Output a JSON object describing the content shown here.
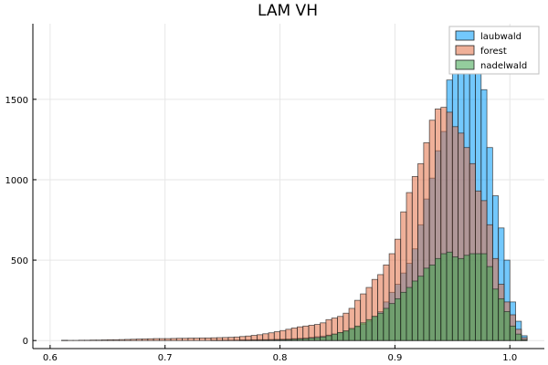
{
  "chart_data": {
    "type": "bar",
    "title": "LAM VH",
    "xlabel": "",
    "ylabel": "",
    "xlim": [
      0.585,
      1.03
    ],
    "ylim": [
      -50,
      1970
    ],
    "x_ticks": [
      0.6,
      0.7,
      0.8,
      0.9,
      1.0
    ],
    "x_tick_labels": [
      "0.6",
      "0.7",
      "0.8",
      "0.9",
      "1.0"
    ],
    "y_ticks": [
      0,
      500,
      1000,
      1500
    ],
    "y_tick_labels": [
      "0",
      "500",
      "1000",
      "1500"
    ],
    "grid": true,
    "legend_position": "top-right",
    "bin_width": 0.005,
    "bin_start": 0.61,
    "series": [
      {
        "name": "laubwald",
        "color": "#009af9",
        "values": [
          1,
          0,
          0,
          0,
          0,
          0,
          0,
          0,
          0,
          0,
          0,
          0,
          0,
          0,
          0,
          0,
          0,
          0,
          0,
          0,
          0,
          0,
          0,
          0,
          0,
          0,
          1,
          1,
          2,
          2,
          3,
          4,
          4,
          5,
          6,
          6,
          7,
          8,
          9,
          10,
          12,
          14,
          16,
          20,
          24,
          28,
          34,
          40,
          48,
          58,
          70,
          84,
          100,
          120,
          150,
          180,
          240,
          300,
          350,
          420,
          480,
          570,
          720,
          880,
          1010,
          1180,
          1300,
          1620,
          1760,
          1850,
          1820,
          1910,
          1730,
          1560,
          1200,
          900,
          700,
          500,
          240,
          120,
          30,
          0
        ]
      },
      {
        "name": "forest",
        "color": "#e26f46",
        "values": [
          1,
          1,
          1,
          2,
          2,
          3,
          3,
          4,
          5,
          5,
          6,
          7,
          8,
          9,
          10,
          11,
          12,
          12,
          12,
          13,
          14,
          14,
          15,
          15,
          16,
          16,
          17,
          18,
          19,
          20,
          22,
          25,
          28,
          32,
          36,
          42,
          48,
          55,
          62,
          70,
          78,
          85,
          90,
          95,
          100,
          110,
          130,
          140,
          150,
          170,
          200,
          250,
          290,
          330,
          380,
          410,
          470,
          540,
          630,
          800,
          920,
          1020,
          1100,
          1230,
          1370,
          1440,
          1450,
          1420,
          1330,
          1290,
          1200,
          1100,
          930,
          870,
          720,
          510,
          350,
          240,
          160,
          70,
          18
        ]
      },
      {
        "name": "nadelwald",
        "color": "#3da44d",
        "values": [
          0,
          0,
          0,
          0,
          0,
          0,
          0,
          0,
          0,
          0,
          0,
          0,
          0,
          0,
          0,
          0,
          0,
          0,
          0,
          0,
          0,
          0,
          0,
          0,
          0,
          0,
          0,
          0,
          0,
          0,
          0,
          1,
          1,
          2,
          2,
          3,
          3,
          4,
          5,
          6,
          8,
          10,
          12,
          15,
          18,
          22,
          30,
          40,
          50,
          60,
          75,
          90,
          110,
          130,
          150,
          170,
          200,
          230,
          260,
          300,
          330,
          370,
          400,
          450,
          470,
          510,
          540,
          550,
          520,
          510,
          530,
          540,
          540,
          540,
          460,
          320,
          260,
          180,
          90,
          40,
          5
        ]
      }
    ]
  }
}
